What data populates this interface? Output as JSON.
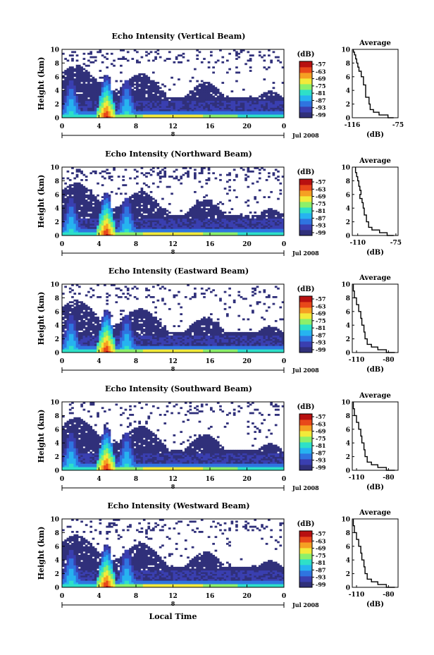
{
  "chart_data": [
    {
      "type": "heatmap",
      "title": "Echo Intensity (Vertical Beam)",
      "ylabel": "Height (km)",
      "xlabel": "",
      "x_ticks": [
        "0",
        "4",
        "8",
        "12",
        "16",
        "20",
        "0"
      ],
      "day_label": "8",
      "date_label": "Jul 2008",
      "y_ticks": [
        "0",
        "2",
        "4",
        "6",
        "8",
        "10"
      ],
      "xlim": [
        0,
        24
      ],
      "ylim": [
        0,
        10
      ],
      "colorbar": {
        "unit": "(dB)",
        "ticks": [
          "-57",
          "-63",
          "-69",
          "-75",
          "-81",
          "-87",
          "-93",
          "-99"
        ]
      },
      "average": {
        "title": "Average",
        "xlabel": "(dB)",
        "x_ticks": [
          "-116",
          "-75"
        ],
        "xlim": [
          -116,
          -75
        ],
        "y_ticks": [
          "0",
          "2",
          "4",
          "6",
          "8",
          "10"
        ],
        "ylim": [
          0,
          10
        ],
        "profile": [
          [
            -79,
            0
          ],
          [
            -84,
            0.4
          ],
          [
            -92,
            0.8
          ],
          [
            -97,
            1.2
          ],
          [
            -100,
            2.0
          ],
          [
            -101,
            3.0
          ],
          [
            -104,
            4.0
          ],
          [
            -104,
            4.8
          ],
          [
            -106,
            5.2
          ],
          [
            -106,
            6.0
          ],
          [
            -108,
            6.8
          ],
          [
            -110,
            7.4
          ],
          [
            -111,
            8.0
          ],
          [
            -112,
            8.6
          ],
          [
            -113,
            9.2
          ],
          [
            -114,
            9.6
          ],
          [
            -115,
            10
          ]
        ]
      }
    },
    {
      "type": "heatmap",
      "title": "Echo Intensity (Northward Beam)",
      "ylabel": "Height (km)",
      "xlabel": "",
      "x_ticks": [
        "0",
        "4",
        "8",
        "12",
        "16",
        "20",
        "0"
      ],
      "day_label": "8",
      "date_label": "Jul 2008",
      "y_ticks": [
        "0",
        "2",
        "4",
        "6",
        "8",
        "10"
      ],
      "xlim": [
        0,
        24
      ],
      "ylim": [
        0,
        10
      ],
      "colorbar": {
        "unit": "(dB)",
        "ticks": [
          "-57",
          "-63",
          "-69",
          "-75",
          "-81",
          "-87",
          "-93",
          "-99"
        ]
      },
      "average": {
        "title": "Average",
        "xlabel": "(dB)",
        "x_ticks": [
          "-110",
          "-75"
        ],
        "xlim": [
          -115,
          -73
        ],
        "y_ticks": [
          "0",
          "2",
          "4",
          "6",
          "8",
          "10"
        ],
        "ylim": [
          0,
          10
        ],
        "profile": [
          [
            -77,
            0
          ],
          [
            -83,
            0.4
          ],
          [
            -90,
            0.8
          ],
          [
            -97,
            1.2
          ],
          [
            -100,
            2.0
          ],
          [
            -102,
            3.0
          ],
          [
            -104,
            4.0
          ],
          [
            -105,
            4.8
          ],
          [
            -106,
            5.4
          ],
          [
            -108,
            6.0
          ],
          [
            -107,
            6.6
          ],
          [
            -108,
            7.2
          ],
          [
            -109,
            8.0
          ],
          [
            -110,
            8.6
          ],
          [
            -111,
            9.2
          ],
          [
            -112,
            10
          ]
        ]
      }
    },
    {
      "type": "heatmap",
      "title": "Echo Intensity (Eastward Beam)",
      "ylabel": "Height (km)",
      "xlabel": "",
      "x_ticks": [
        "0",
        "4",
        "8",
        "12",
        "16",
        "20",
        "0"
      ],
      "day_label": "8",
      "date_label": "Jul 2008",
      "y_ticks": [
        "0",
        "2",
        "4",
        "6",
        "8",
        "10"
      ],
      "xlim": [
        0,
        24
      ],
      "ylim": [
        0,
        10
      ],
      "colorbar": {
        "unit": "(dB)",
        "ticks": [
          "-57",
          "-63",
          "-69",
          "-75",
          "-81",
          "-87",
          "-93",
          "-99"
        ]
      },
      "average": {
        "title": "Average",
        "xlabel": "(dB)",
        "x_ticks": [
          "-110",
          "-80"
        ],
        "xlim": [
          -114,
          -71
        ],
        "y_ticks": [
          "0",
          "2",
          "4",
          "6",
          "8",
          "10"
        ],
        "ylim": [
          0,
          10
        ],
        "profile": [
          [
            -74,
            0
          ],
          [
            -82,
            0.4
          ],
          [
            -90,
            0.8
          ],
          [
            -96,
            1.2
          ],
          [
            -100,
            2.0
          ],
          [
            -102,
            3.0
          ],
          [
            -103,
            4.0
          ],
          [
            -105,
            5.0
          ],
          [
            -106,
            6.0
          ],
          [
            -108,
            7.0
          ],
          [
            -110,
            8.0
          ],
          [
            -112,
            9.0
          ],
          [
            -113,
            10
          ]
        ]
      }
    },
    {
      "type": "heatmap",
      "title": "Echo Intensity (Southward Beam)",
      "ylabel": "Height (km)",
      "xlabel": "",
      "x_ticks": [
        "0",
        "4",
        "8",
        "12",
        "16",
        "20",
        "0"
      ],
      "day_label": "8",
      "date_label": "Jul 2008",
      "y_ticks": [
        "0",
        "2",
        "4",
        "6",
        "8",
        "10"
      ],
      "xlim": [
        0,
        24
      ],
      "ylim": [
        0,
        10
      ],
      "colorbar": {
        "unit": "(dB)",
        "ticks": [
          "-57",
          "-63",
          "-69",
          "-75",
          "-81",
          "-87",
          "-93",
          "-99"
        ]
      },
      "average": {
        "title": "Average",
        "xlabel": "(dB)",
        "x_ticks": [
          "-110",
          "-80"
        ],
        "xlim": [
          -114,
          -71
        ],
        "y_ticks": [
          "0",
          "2",
          "4",
          "6",
          "8",
          "10"
        ],
        "ylim": [
          0,
          10
        ],
        "profile": [
          [
            -74,
            0
          ],
          [
            -82,
            0.4
          ],
          [
            -90,
            0.8
          ],
          [
            -96,
            1.2
          ],
          [
            -100,
            2.0
          ],
          [
            -102,
            3.0
          ],
          [
            -103,
            4.0
          ],
          [
            -105,
            5.0
          ],
          [
            -106,
            6.0
          ],
          [
            -108,
            7.0
          ],
          [
            -110,
            8.0
          ],
          [
            -112,
            9.0
          ],
          [
            -113,
            10
          ]
        ]
      }
    },
    {
      "type": "heatmap",
      "title": "Echo Intensity (Westward Beam)",
      "ylabel": "Height (km)",
      "xlabel": "Local Time",
      "x_ticks": [
        "0",
        "4",
        "8",
        "12",
        "16",
        "20",
        "0"
      ],
      "day_label": "8",
      "date_label": "Jul 2008",
      "y_ticks": [
        "0",
        "2",
        "4",
        "6",
        "8",
        "10"
      ],
      "xlim": [
        0,
        24
      ],
      "ylim": [
        0,
        10
      ],
      "colorbar": {
        "unit": "(dB)",
        "ticks": [
          "-57",
          "-63",
          "-69",
          "-75",
          "-81",
          "-87",
          "-93",
          "-99"
        ]
      },
      "average": {
        "title": "Average",
        "xlabel": "(dB)",
        "x_ticks": [
          "-110",
          "-80"
        ],
        "xlim": [
          -114,
          -71
        ],
        "y_ticks": [
          "0",
          "2",
          "4",
          "6",
          "8",
          "10"
        ],
        "ylim": [
          0,
          10
        ],
        "profile": [
          [
            -74,
            0
          ],
          [
            -82,
            0.4
          ],
          [
            -90,
            0.8
          ],
          [
            -96,
            1.2
          ],
          [
            -100,
            2.0
          ],
          [
            -102,
            3.0
          ],
          [
            -103,
            4.0
          ],
          [
            -105,
            5.0
          ],
          [
            -106,
            6.0
          ],
          [
            -108,
            7.0
          ],
          [
            -110,
            8.0
          ],
          [
            -112,
            9.0
          ],
          [
            -113,
            10
          ]
        ]
      }
    }
  ],
  "colors": {
    "scale": [
      "#30307a",
      "#3a3fb0",
      "#2f74e0",
      "#26b3f0",
      "#2ee0c8",
      "#8cf06a",
      "#f2ea3a",
      "#f5a023",
      "#e8481a",
      "#b81010"
    ]
  }
}
